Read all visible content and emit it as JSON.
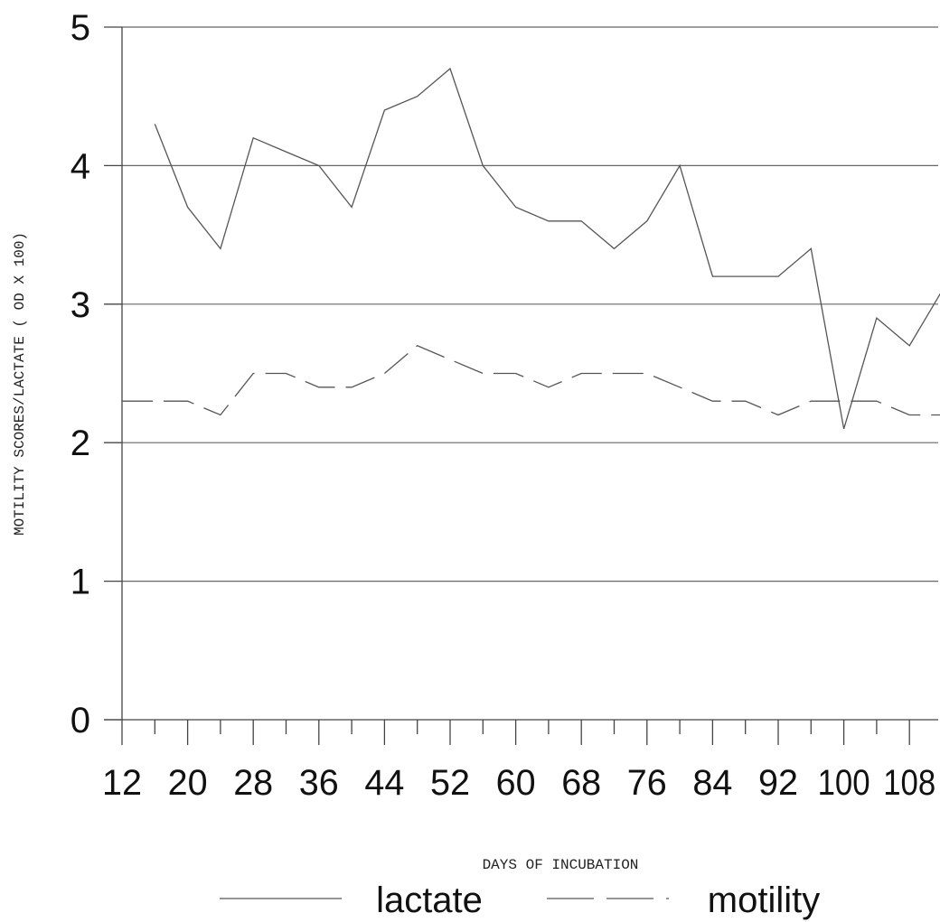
{
  "chart_data": {
    "type": "line",
    "title": "",
    "xlabel": "DAYS OF INCUBATION",
    "ylabel": "MOTILITY SCORES/LACTATE ( OD X 100)",
    "xlim": [
      12,
      114
    ],
    "ylim": [
      0,
      5
    ],
    "x_ticks": [
      12,
      16,
      20,
      24,
      28,
      32,
      36,
      40,
      44,
      48,
      52,
      56,
      60,
      64,
      68,
      72,
      76,
      80,
      84,
      88,
      92,
      96,
      100,
      104,
      108,
      112
    ],
    "x_tick_labels": [
      "12",
      "20",
      "28",
      "36",
      "44",
      "52",
      "60",
      "68",
      "76",
      "84",
      "92",
      "100",
      "108"
    ],
    "y_ticks": [
      0,
      1,
      2,
      3,
      4,
      5
    ],
    "y_tick_labels": [
      "0",
      "1",
      "2",
      "3",
      "4",
      "5"
    ],
    "grid": "horizontal",
    "legend_position": "bottom",
    "series": [
      {
        "name": "lactate",
        "line_style": "solid",
        "color": "#555555",
        "x": [
          16,
          20,
          24,
          28,
          32,
          36,
          40,
          44,
          48,
          52,
          56,
          60,
          64,
          68,
          72,
          76,
          80,
          84,
          88,
          92,
          96,
          100,
          104,
          108,
          112
        ],
        "y": [
          4.3,
          3.7,
          3.4,
          4.2,
          4.1,
          4.0,
          3.7,
          4.4,
          4.5,
          4.7,
          4.0,
          3.7,
          3.6,
          3.6,
          3.4,
          3.6,
          4.0,
          3.2,
          3.2,
          3.2,
          3.4,
          2.1,
          2.9,
          2.7,
          3.1
        ]
      },
      {
        "name": "motility",
        "line_style": "dashed",
        "color": "#555555",
        "x": [
          12,
          16,
          20,
          24,
          28,
          32,
          36,
          40,
          44,
          48,
          52,
          56,
          60,
          64,
          68,
          72,
          76,
          80,
          84,
          88,
          92,
          96,
          100,
          104,
          108,
          112
        ],
        "y": [
          2.3,
          2.3,
          2.3,
          2.2,
          2.5,
          2.5,
          2.4,
          2.4,
          2.5,
          2.7,
          2.6,
          2.5,
          2.5,
          2.4,
          2.5,
          2.5,
          2.5,
          2.4,
          2.3,
          2.3,
          2.2,
          2.3,
          2.3,
          2.3,
          2.2,
          2.2
        ]
      }
    ]
  }
}
